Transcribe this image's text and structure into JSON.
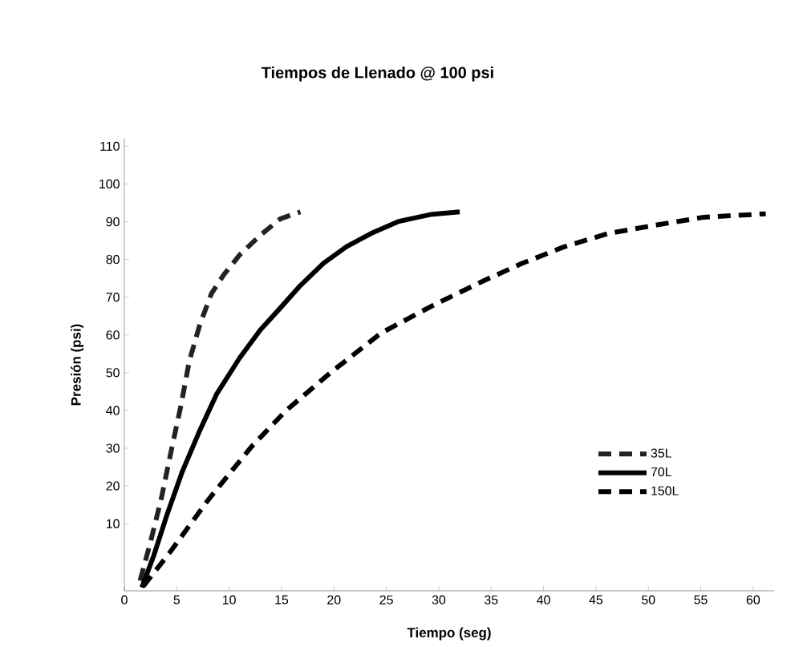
{
  "chart_data": {
    "type": "line",
    "title": "Tiempos de Llenado @ 100 psi",
    "xlabel": "Tiempo (seg)",
    "ylabel": "Presión (psi)",
    "xlim": [
      0,
      62
    ],
    "xticks": [
      0,
      5,
      10,
      15,
      20,
      25,
      30,
      35,
      40,
      45,
      50,
      55,
      60
    ],
    "ylim": [
      -7.8,
      112
    ],
    "yticks": [
      10,
      20,
      30,
      40,
      50,
      60,
      70,
      80,
      90,
      100,
      110
    ],
    "grid": false,
    "legend": "bottom right",
    "marker": "none",
    "series": [
      {
        "name": "35L",
        "color": "#222222",
        "line_style": "dashed",
        "x": [
          1.5,
          2.5,
          3.5,
          4.6,
          5.4,
          6.2,
          7.2,
          8.3,
          9.5,
          11.0,
          12.96,
          14.9,
          16.8
        ],
        "values": [
          -5.1,
          5.2,
          16.3,
          31.0,
          41.3,
          53.1,
          62.7,
          70.9,
          76.0,
          81.2,
          86.4,
          90.8,
          92.6
        ]
      },
      {
        "name": "70L",
        "color": "#000000",
        "line_style": "solid",
        "x": [
          1.67,
          2.8,
          4.1,
          5.5,
          7.2,
          8.8,
          11.0,
          12.96,
          14.9,
          16.8,
          19.0,
          21.2,
          23.7,
          26.2,
          29.2,
          32.0
        ],
        "values": [
          -6.9,
          1.5,
          12.6,
          23.6,
          34.7,
          44.3,
          53.9,
          61.3,
          67.2,
          73.1,
          79.0,
          83.4,
          87.1,
          90.1,
          91.9,
          92.6
        ]
      },
      {
        "name": "150L",
        "color": "#000000",
        "line_style": "dashed",
        "x": [
          1.8,
          4.4,
          8.0,
          12.1,
          15.4,
          19.8,
          24.5,
          29.5,
          34.4,
          37.9,
          41.9,
          46.2,
          50.7,
          55.3,
          61.2
        ],
        "values": [
          -6.6,
          2.6,
          16.3,
          30.3,
          39.9,
          50.3,
          60.5,
          67.9,
          74.5,
          78.9,
          83.3,
          86.9,
          89.1,
          91.2,
          92.1
        ]
      }
    ]
  }
}
